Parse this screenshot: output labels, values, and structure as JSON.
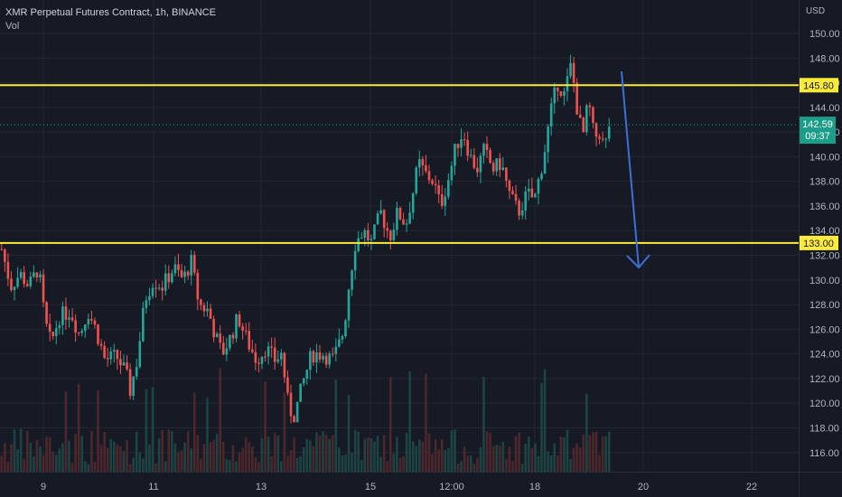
{
  "header": {
    "title": "XMR Perpetual Futures Contract, 1h, BINANCE",
    "volume_label": "Vol"
  },
  "colors": {
    "background": "#161a25",
    "grid": "#232733",
    "axis_text": "#b2b5be",
    "up": "#26a69a",
    "down": "#ef5350",
    "level_line": "#ffeb3b",
    "arrow": "#3d6fd6",
    "last_price_badge": "#1a9e8a"
  },
  "chart_data": {
    "type": "candlestick",
    "title": "XMR Perpetual Futures Contract, 1h, BINANCE",
    "y_axis_unit": "USD",
    "ylim": [
      114.5,
      151.5
    ],
    "y_ticks": [
      116,
      118,
      120,
      122,
      124,
      126,
      128,
      130,
      132,
      134,
      136,
      138,
      140,
      142,
      144,
      146,
      148,
      150
    ],
    "x_ticks": [
      "9",
      "11",
      "13",
      "15",
      "12:00",
      "18",
      "20",
      "22"
    ],
    "grid": true,
    "last_price": {
      "value": "142.59",
      "countdown": "09:37",
      "price": 142.59
    },
    "horizontal_levels": [
      {
        "label": "145.80",
        "price": 145.8
      },
      {
        "label": "133.00",
        "price": 133.0
      }
    ],
    "price_path": [
      {
        "t": 0.0,
        "price": 132.5
      },
      {
        "t": 0.8,
        "price": 129.5
      },
      {
        "t": 1.6,
        "price": 130.5
      },
      {
        "t": 2.4,
        "price": 129.5
      },
      {
        "t": 3.2,
        "price": 131.0
      },
      {
        "t": 3.8,
        "price": 126.5
      },
      {
        "t": 4.3,
        "price": 124.8
      },
      {
        "t": 5.0,
        "price": 127.0
      },
      {
        "t": 6.0,
        "price": 127.5
      },
      {
        "t": 6.8,
        "price": 125.5
      },
      {
        "t": 7.5,
        "price": 127.5
      },
      {
        "t": 8.2,
        "price": 126.0
      },
      {
        "t": 9.0,
        "price": 123.5
      },
      {
        "t": 10.0,
        "price": 123.8
      },
      {
        "t": 10.8,
        "price": 122.5
      },
      {
        "t": 11.2,
        "price": 121.0
      },
      {
        "t": 11.8,
        "price": 123.5
      },
      {
        "t": 12.5,
        "price": 128.5
      },
      {
        "t": 13.2,
        "price": 130.0
      },
      {
        "t": 14.0,
        "price": 129.5
      },
      {
        "t": 15.0,
        "price": 131.0
      },
      {
        "t": 15.8,
        "price": 130.0
      },
      {
        "t": 16.5,
        "price": 131.5
      },
      {
        "t": 17.2,
        "price": 128.0
      },
      {
        "t": 18.0,
        "price": 127.5
      },
      {
        "t": 18.6,
        "price": 125.5
      },
      {
        "t": 19.2,
        "price": 124.0
      },
      {
        "t": 20.0,
        "price": 125.5
      },
      {
        "t": 20.6,
        "price": 127.0
      },
      {
        "t": 21.4,
        "price": 125.0
      },
      {
        "t": 22.2,
        "price": 123.5
      },
      {
        "t": 23.0,
        "price": 124.5
      },
      {
        "t": 23.8,
        "price": 123.5
      },
      {
        "t": 24.4,
        "price": 124.0
      },
      {
        "t": 25.0,
        "price": 119.5
      },
      {
        "t": 25.5,
        "price": 119.0
      },
      {
        "t": 26.2,
        "price": 121.5
      },
      {
        "t": 27.0,
        "price": 124.0
      },
      {
        "t": 28.0,
        "price": 124.0
      },
      {
        "t": 28.8,
        "price": 123.5
      },
      {
        "t": 29.3,
        "price": 124.5
      },
      {
        "t": 29.8,
        "price": 126.0
      },
      {
        "t": 30.3,
        "price": 130.0
      },
      {
        "t": 30.8,
        "price": 133.0
      },
      {
        "t": 31.5,
        "price": 134.0
      },
      {
        "t": 32.2,
        "price": 133.0
      },
      {
        "t": 33.0,
        "price": 135.5
      },
      {
        "t": 33.8,
        "price": 133.5
      },
      {
        "t": 34.5,
        "price": 135.5
      },
      {
        "t": 35.2,
        "price": 134.5
      },
      {
        "t": 35.8,
        "price": 137.0
      },
      {
        "t": 36.3,
        "price": 139.5
      },
      {
        "t": 37.0,
        "price": 138.5
      },
      {
        "t": 37.6,
        "price": 138.0
      },
      {
        "t": 38.2,
        "price": 136.0
      },
      {
        "t": 39.0,
        "price": 138.5
      },
      {
        "t": 39.6,
        "price": 141.0
      },
      {
        "t": 40.2,
        "price": 142.0
      },
      {
        "t": 40.8,
        "price": 140.0
      },
      {
        "t": 41.4,
        "price": 139.0
      },
      {
        "t": 42.0,
        "price": 140.5
      },
      {
        "t": 42.8,
        "price": 139.0
      },
      {
        "t": 43.5,
        "price": 139.5
      },
      {
        "t": 44.2,
        "price": 137.0
      },
      {
        "t": 45.0,
        "price": 135.5
      },
      {
        "t": 45.8,
        "price": 137.0
      },
      {
        "t": 46.4,
        "price": 136.5
      },
      {
        "t": 47.2,
        "price": 140.0
      },
      {
        "t": 47.8,
        "price": 143.5
      },
      {
        "t": 48.4,
        "price": 146.0
      },
      {
        "t": 49.0,
        "price": 145.0
      },
      {
        "t": 49.6,
        "price": 147.5
      },
      {
        "t": 50.1,
        "price": 144.0
      },
      {
        "t": 50.6,
        "price": 141.5
      },
      {
        "t": 51.1,
        "price": 144.5
      },
      {
        "t": 51.6,
        "price": 141.5
      },
      {
        "t": 52.1,
        "price": 142.0
      },
      {
        "t": 52.5,
        "price": 140.5
      },
      {
        "t": 52.9,
        "price": 142.59
      }
    ]
  }
}
